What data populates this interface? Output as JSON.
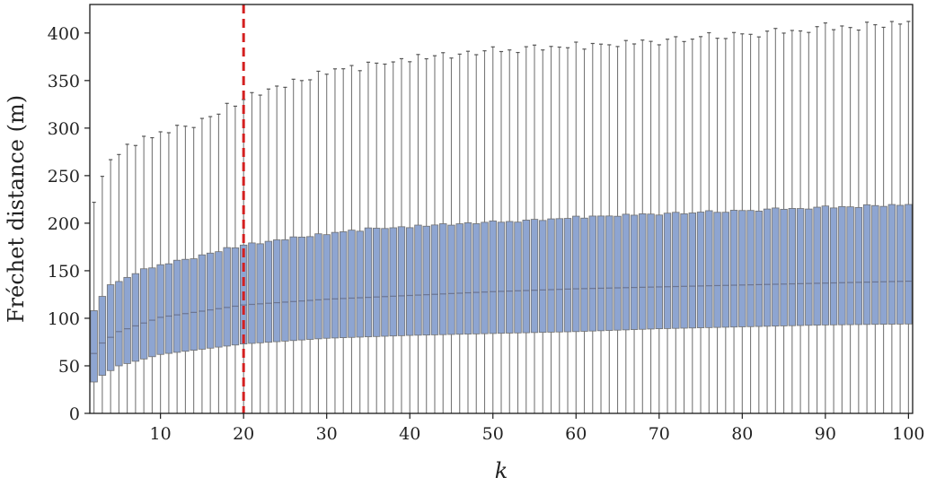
{
  "chart_data": {
    "type": "box",
    "xlabel": "k",
    "ylabel": "Fréchet distance (m)",
    "xlim": [
      1.5,
      100.5
    ],
    "ylim": [
      0,
      430
    ],
    "xticks": [
      10,
      20,
      30,
      40,
      50,
      60,
      70,
      80,
      90,
      100
    ],
    "yticks": [
      0,
      50,
      100,
      150,
      200,
      250,
      300,
      350,
      400
    ],
    "xtick_labels": [
      "10",
      "20",
      "30",
      "40",
      "50",
      "60",
      "70",
      "80",
      "90",
      "100"
    ],
    "ytick_labels": [
      "0",
      "50",
      "100",
      "150",
      "200",
      "250",
      "300",
      "350",
      "400"
    ],
    "reference_line": {
      "axis": "x",
      "value": 20,
      "style": "dashed",
      "color": "#d42020"
    },
    "box_color": "#8ea5d1",
    "box_edge_color": "#707070",
    "grid": false,
    "series": [
      {
        "k_start": 2,
        "k_end": 100,
        "min": 0,
        "q1_anchors": [
          [
            2,
            33
          ],
          [
            3,
            40
          ],
          [
            5,
            50
          ],
          [
            10,
            62
          ],
          [
            20,
            73
          ],
          [
            30,
            79
          ],
          [
            40,
            82
          ],
          [
            50,
            84
          ],
          [
            60,
            86
          ],
          [
            70,
            89
          ],
          [
            80,
            91
          ],
          [
            90,
            93
          ],
          [
            100,
            94
          ]
        ],
        "median_anchors": [
          [
            2,
            63
          ],
          [
            3,
            74
          ],
          [
            5,
            86
          ],
          [
            10,
            101
          ],
          [
            20,
            114
          ],
          [
            30,
            120
          ],
          [
            40,
            124
          ],
          [
            50,
            128
          ],
          [
            60,
            131
          ],
          [
            70,
            133
          ],
          [
            80,
            135
          ],
          [
            90,
            137
          ],
          [
            100,
            139
          ]
        ],
        "q3_anchors": [
          [
            2,
            108
          ],
          [
            3,
            122
          ],
          [
            4,
            136
          ],
          [
            5,
            138
          ],
          [
            7,
            148
          ],
          [
            10,
            156
          ],
          [
            15,
            166
          ],
          [
            20,
            177
          ],
          [
            25,
            183
          ],
          [
            30,
            189
          ],
          [
            35,
            194
          ],
          [
            40,
            196
          ],
          [
            45,
            199
          ],
          [
            50,
            201
          ],
          [
            55,
            203
          ],
          [
            60,
            206
          ],
          [
            65,
            208
          ],
          [
            70,
            210
          ],
          [
            75,
            211
          ],
          [
            80,
            213
          ],
          [
            85,
            215
          ],
          [
            90,
            216
          ],
          [
            95,
            218
          ],
          [
            100,
            219
          ]
        ],
        "whisker_high_anchors": [
          [
            2,
            222
          ],
          [
            3,
            246
          ],
          [
            4,
            269
          ],
          [
            5,
            270
          ],
          [
            6,
            283
          ],
          [
            8,
            287
          ],
          [
            10,
            295
          ],
          [
            13,
            302
          ],
          [
            16,
            311
          ],
          [
            20,
            330
          ],
          [
            22,
            338
          ],
          [
            25,
            344
          ],
          [
            28,
            353
          ],
          [
            30,
            360
          ],
          [
            35,
            366
          ],
          [
            40,
            372
          ],
          [
            45,
            377
          ],
          [
            50,
            381
          ],
          [
            55,
            384
          ],
          [
            60,
            386
          ],
          [
            65,
            388
          ],
          [
            70,
            392
          ],
          [
            75,
            394
          ],
          [
            80,
            398
          ],
          [
            85,
            401
          ],
          [
            90,
            404
          ],
          [
            95,
            407
          ],
          [
            100,
            410
          ]
        ],
        "jitter": [
          0,
          3,
          -2,
          2,
          0,
          -3,
          4,
          -1,
          1,
          -2,
          3,
          0,
          -4,
          2,
          1,
          -1,
          5,
          -2,
          0,
          3,
          -3,
          1,
          2,
          -1,
          4,
          0,
          -2,
          3,
          -3,
          1,
          0,
          2,
          -4,
          3,
          1,
          -1,
          0,
          2,
          -2,
          4,
          -1,
          1,
          3,
          -3,
          0,
          2,
          -2,
          1,
          4,
          -1,
          0,
          -3,
          2,
          3,
          -2,
          1,
          0,
          -1,
          4,
          -3,
          2,
          1,
          0,
          -2,
          3,
          -1,
          2,
          0,
          -4,
          1,
          3,
          -2,
          0,
          2,
          5,
          -1,
          -2,
          3,
          1,
          0,
          -3,
          2,
          4,
          -1,
          1,
          0,
          -2,
          3,
          6,
          -1,
          2,
          0,
          -3,
          4,
          1,
          -2,
          3,
          0,
          2
        ]
      }
    ]
  }
}
